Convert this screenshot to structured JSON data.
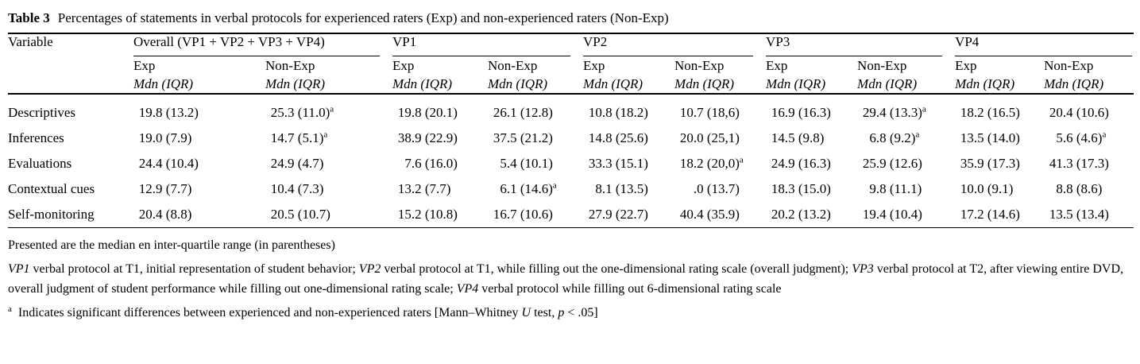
{
  "title": {
    "label": "Table 3",
    "text": "Percentages of statements in verbal protocols for experienced raters (Exp) and non-experienced raters (Non-Exp)"
  },
  "table": {
    "variable_header": "Variable",
    "groups": [
      {
        "label": "Overall (VP1 + VP2 + VP3 + VP4)"
      },
      {
        "label": "VP1"
      },
      {
        "label": "VP2"
      },
      {
        "label": "VP3"
      },
      {
        "label": "VP4"
      }
    ],
    "sub_exp": "Exp",
    "sub_nonexp": "Non-Exp",
    "sub_measure": "Mdn (IQR)",
    "sig_marker": "a",
    "rows": [
      {
        "variable": "Descriptives",
        "cells": [
          {
            "mdn": "19.8",
            "iqr": "(13.2)",
            "sig": false
          },
          {
            "mdn": "25.3",
            "iqr": "(11.0)",
            "sig": true
          },
          {
            "mdn": "19.8",
            "iqr": "(20.1)",
            "sig": false
          },
          {
            "mdn": "26.1",
            "iqr": "(12.8)",
            "sig": false
          },
          {
            "mdn": "10.8",
            "iqr": "(18.2)",
            "sig": false
          },
          {
            "mdn": "10.7",
            "iqr": "(18,6)",
            "sig": false
          },
          {
            "mdn": "16.9",
            "iqr": "(16.3)",
            "sig": false
          },
          {
            "mdn": "29.4",
            "iqr": "(13.3)",
            "sig": true
          },
          {
            "mdn": "18.2",
            "iqr": "(16.5)",
            "sig": false
          },
          {
            "mdn": "20.4",
            "iqr": "(10.6)",
            "sig": false
          }
        ]
      },
      {
        "variable": "Inferences",
        "cells": [
          {
            "mdn": "19.0",
            "iqr": "(7.9)",
            "sig": false
          },
          {
            "mdn": "14.7",
            "iqr": "(5.1)",
            "sig": true
          },
          {
            "mdn": "38.9",
            "iqr": "(22.9)",
            "sig": false
          },
          {
            "mdn": "37.5",
            "iqr": "(21.2)",
            "sig": false
          },
          {
            "mdn": "14.8",
            "iqr": "(25.6)",
            "sig": false
          },
          {
            "mdn": "20.0",
            "iqr": "(25,1)",
            "sig": false
          },
          {
            "mdn": "14.5",
            "iqr": "(9.8)",
            "sig": false
          },
          {
            "mdn": "6.8",
            "iqr": "(9.2)",
            "sig": true
          },
          {
            "mdn": "13.5",
            "iqr": "(14.0)",
            "sig": false
          },
          {
            "mdn": "5.6",
            "iqr": "(4.6)",
            "sig": true
          }
        ]
      },
      {
        "variable": "Evaluations",
        "cells": [
          {
            "mdn": "24.4",
            "iqr": "(10.4)",
            "sig": false
          },
          {
            "mdn": "24.9",
            "iqr": "(4.7)",
            "sig": false
          },
          {
            "mdn": "7.6",
            "iqr": "(16.0)",
            "sig": false
          },
          {
            "mdn": "5.4",
            "iqr": "(10.1)",
            "sig": false
          },
          {
            "mdn": "33.3",
            "iqr": "(15.1)",
            "sig": false
          },
          {
            "mdn": "18.2",
            "iqr": "(20,0)",
            "sig": true
          },
          {
            "mdn": "24.9",
            "iqr": "(16.3)",
            "sig": false
          },
          {
            "mdn": "25.9",
            "iqr": "(12.6)",
            "sig": false
          },
          {
            "mdn": "35.9",
            "iqr": "(17.3)",
            "sig": false
          },
          {
            "mdn": "41.3",
            "iqr": "(17.3)",
            "sig": false
          }
        ]
      },
      {
        "variable": "Contextual cues",
        "cells": [
          {
            "mdn": "12.9",
            "iqr": "(7.7)",
            "sig": false
          },
          {
            "mdn": "10.4",
            "iqr": "(7.3)",
            "sig": false
          },
          {
            "mdn": "13.2",
            "iqr": "(7.7)",
            "sig": false
          },
          {
            "mdn": "6.1",
            "iqr": "(14.6)",
            "sig": true
          },
          {
            "mdn": "8.1",
            "iqr": "(13.5)",
            "sig": false
          },
          {
            "mdn": ".0",
            "iqr": "(13.7)",
            "sig": false
          },
          {
            "mdn": "18.3",
            "iqr": "(15.0)",
            "sig": false
          },
          {
            "mdn": "9.8",
            "iqr": "(11.1)",
            "sig": false
          },
          {
            "mdn": "10.0",
            "iqr": "(9.1)",
            "sig": false
          },
          {
            "mdn": "8.8",
            "iqr": "(8.6)",
            "sig": false
          }
        ]
      },
      {
        "variable": "Self-monitoring",
        "cells": [
          {
            "mdn": "20.4",
            "iqr": "(8.8)",
            "sig": false
          },
          {
            "mdn": "20.5",
            "iqr": "(10.7)",
            "sig": false
          },
          {
            "mdn": "15.2",
            "iqr": "(10.8)",
            "sig": false
          },
          {
            "mdn": "16.7",
            "iqr": "(10.6)",
            "sig": false
          },
          {
            "mdn": "27.9",
            "iqr": "(22.7)",
            "sig": false
          },
          {
            "mdn": "40.4",
            "iqr": "(35.9)",
            "sig": false
          },
          {
            "mdn": "20.2",
            "iqr": "(13.2)",
            "sig": false
          },
          {
            "mdn": "19.4",
            "iqr": "(10.4)",
            "sig": false
          },
          {
            "mdn": "17.2",
            "iqr": "(14.6)",
            "sig": false
          },
          {
            "mdn": "13.5",
            "iqr": "(13.4)",
            "sig": false
          }
        ]
      }
    ]
  },
  "footnotes": {
    "general": "Presented are the median en inter-quartile range (in parentheses)",
    "vp_definitions": [
      {
        "t": "VP1",
        "i": true
      },
      {
        "t": " verbal protocol at T1, initial representation of student behavior; ",
        "i": false
      },
      {
        "t": "VP2",
        "i": true
      },
      {
        "t": " verbal protocol at T1, while filling out the one-dimensional rating scale (overall judgment); ",
        "i": false
      },
      {
        "t": "VP3",
        "i": true
      },
      {
        "t": " verbal protocol at T2, after viewing entire DVD, overall judgment of student performance while filling out one-dimensional rating scale; ",
        "i": false
      },
      {
        "t": "VP4",
        "i": true
      },
      {
        "t": " verbal protocol while filling out 6-dimensional rating scale",
        "i": false
      }
    ],
    "significance_marker": "a",
    "significance": [
      {
        "t": "Indicates significant differences between experienced and non-experienced raters [Mann–Whitney ",
        "i": false
      },
      {
        "t": "U",
        "i": true
      },
      {
        "t": " test, ",
        "i": false
      },
      {
        "t": "p",
        "i": true
      },
      {
        "t": " < .05]",
        "i": false
      }
    ]
  }
}
